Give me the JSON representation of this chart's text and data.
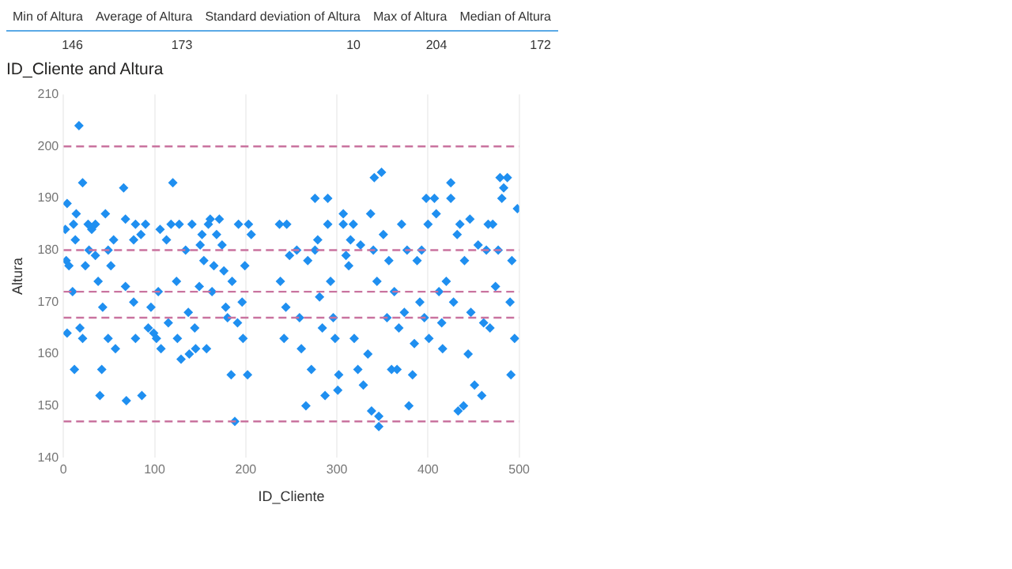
{
  "chart_data": [
    {
      "type": "other",
      "categories": [
        "Min of Altura",
        "Average of Altura",
        "Standard deviation of Altura",
        "Max of Altura",
        "Median of Altura"
      ],
      "values": [
        146,
        173,
        10,
        204,
        172
      ],
      "data_labels": true
    },
    {
      "type": "scatter",
      "title": "ID_Cliente and Altura",
      "xlabel": "ID_Cliente",
      "ylabel": "Altura",
      "xlim": [
        0,
        500
      ],
      "xticks": [
        0,
        100,
        200,
        300,
        400,
        500
      ],
      "ylim": [
        140,
        210
      ],
      "yticks": [
        140,
        150,
        160,
        170,
        180,
        190,
        200,
        210
      ],
      "grid": "x",
      "marker": "diamond",
      "ref_lines": [
        {
          "axis": "y",
          "value": 147,
          "color": "#c9739f",
          "line_style": "dashed"
        },
        {
          "axis": "y",
          "value": 167,
          "color": "#c9739f",
          "line_style": "dashed"
        },
        {
          "axis": "y",
          "value": 172,
          "color": "#c9739f",
          "line_style": "dashed"
        },
        {
          "axis": "y",
          "value": 180,
          "color": "#c9739f",
          "line_style": "dashed"
        },
        {
          "axis": "y",
          "value": 200,
          "color": "#c9739f",
          "line_style": "dashed"
        }
      ],
      "series": [
        {
          "color": "#1f8ff0",
          "x": [
            2,
            4,
            3,
            6,
            4,
            17,
            11,
            13,
            14,
            10,
            12,
            21,
            18,
            21,
            24,
            27,
            28,
            31,
            35,
            35,
            38,
            40,
            42,
            43,
            46,
            49,
            49,
            52,
            55,
            57,
            66,
            68,
            68,
            69,
            77,
            77,
            79,
            79,
            85,
            86,
            90,
            93,
            96,
            99,
            102,
            104,
            106,
            107,
            113,
            115,
            118,
            120,
            124,
            125,
            127,
            129,
            134,
            137,
            138,
            141,
            144,
            145,
            149,
            150,
            152,
            154,
            157,
            159,
            161,
            163,
            165,
            168,
            171,
            174,
            176,
            178,
            180,
            184,
            185,
            188,
            191,
            192,
            196,
            197,
            199,
            202,
            203,
            206,
            237,
            238,
            242,
            245,
            244,
            248,
            256,
            259,
            261,
            266,
            268,
            272,
            276,
            276,
            279,
            281,
            284,
            287,
            290,
            290,
            293,
            296,
            298,
            301,
            302,
            307,
            307,
            310,
            313,
            315,
            318,
            319,
            323,
            326,
            329,
            334,
            337,
            338,
            340,
            341,
            344,
            346,
            346,
            349,
            351,
            355,
            357,
            360,
            363,
            366,
            368,
            371,
            374,
            377,
            379,
            383,
            385,
            388,
            391,
            393,
            396,
            398,
            400,
            401,
            407,
            409,
            412,
            415,
            416,
            420,
            425,
            425,
            428,
            432,
            433,
            435,
            439,
            440,
            444,
            446,
            447,
            451,
            455,
            459,
            461,
            464,
            466,
            468,
            471,
            474,
            477,
            479,
            481,
            483,
            487,
            490,
            491,
            492,
            495,
            498
          ],
          "values": [
            184,
            189,
            178,
            177,
            164,
            204,
            185,
            182,
            187,
            172,
            157,
            193,
            165,
            163,
            177,
            185,
            180,
            184,
            185,
            179,
            174,
            152,
            157,
            169,
            187,
            180,
            163,
            177,
            182,
            161,
            192,
            186,
            173,
            151,
            170,
            182,
            185,
            163,
            183,
            152,
            185,
            165,
            169,
            164,
            163,
            172,
            184,
            161,
            182,
            166,
            185,
            193,
            174,
            163,
            185,
            159,
            180,
            168,
            160,
            185,
            165,
            161,
            173,
            181,
            183,
            178,
            161,
            185,
            186,
            172,
            177,
            183,
            186,
            181,
            176,
            169,
            167,
            156,
            174,
            147,
            166,
            185,
            170,
            163,
            177,
            156,
            185,
            183,
            185,
            174,
            163,
            185,
            169,
            179,
            180,
            167,
            161,
            150,
            178,
            157,
            190,
            180,
            182,
            171,
            165,
            152,
            190,
            185,
            174,
            167,
            163,
            153,
            156,
            187,
            185,
            179,
            177,
            182,
            185,
            163,
            157,
            181,
            154,
            160,
            187,
            149,
            180,
            194,
            174,
            148,
            146,
            195,
            183,
            167,
            178,
            157,
            172,
            157,
            165,
            185,
            168,
            180,
            150,
            156,
            162,
            178,
            170,
            180,
            167,
            190,
            185,
            163,
            190,
            187,
            172,
            166,
            161,
            174,
            193,
            190,
            170,
            183,
            149,
            185,
            150,
            178,
            160,
            186,
            168,
            154,
            181,
            152,
            166,
            180,
            185,
            165,
            185,
            173,
            180,
            194,
            190,
            192,
            194,
            170,
            156,
            178,
            163,
            188
          ]
        }
      ]
    }
  ]
}
